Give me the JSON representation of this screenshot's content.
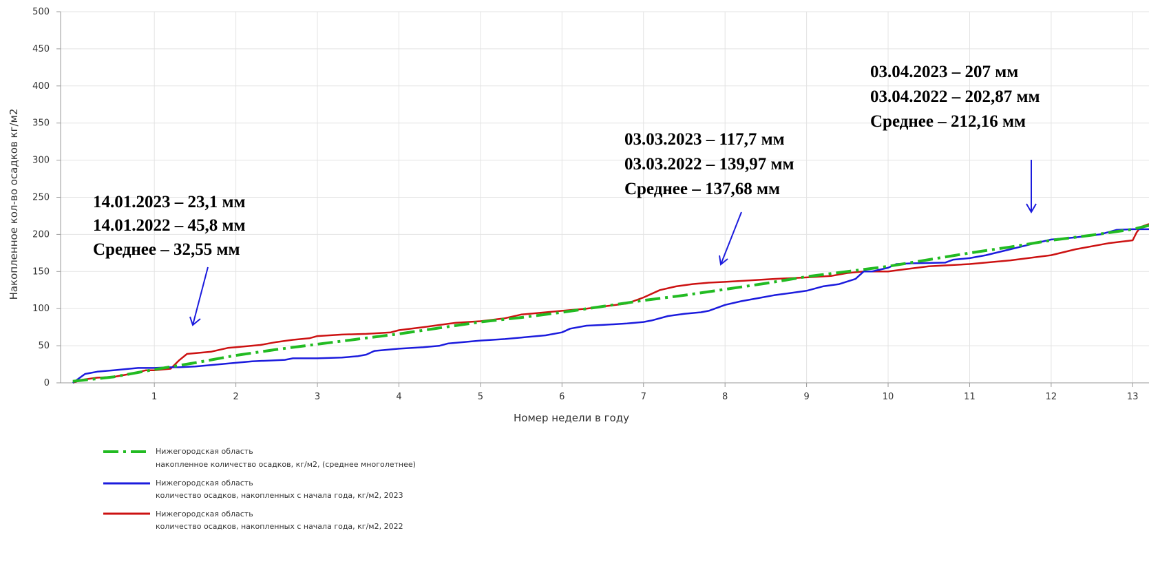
{
  "chart_data": {
    "type": "line",
    "xlabel": "Номер недели в году",
    "ylabel": "Накопленное кол-во осадков кг/м2",
    "xlim": [
      -0.15,
      13.2
    ],
    "ylim": [
      0,
      500
    ],
    "x_ticks": [
      1,
      2,
      3,
      4,
      5,
      6,
      7,
      8,
      9,
      10,
      11,
      12,
      13
    ],
    "y_ticks": [
      0,
      50,
      100,
      150,
      200,
      250,
      300,
      350,
      400,
      450,
      500
    ],
    "grid": true,
    "legend_position": "bottom-left",
    "series": [
      {
        "name": "Нижегородская область",
        "subtitle": "накопленное количество осадков, кг/м2, (среднее многолетнее)",
        "color": "#22bb22",
        "dash": "dash-dot",
        "x": [
          0,
          0.5,
          1,
          1.5,
          2,
          2.5,
          3,
          3.5,
          4,
          4.5,
          5,
          5.5,
          6,
          6.5,
          7,
          7.5,
          8,
          8.5,
          9,
          9.5,
          10,
          10.5,
          11,
          11.5,
          12,
          12.5,
          13,
          13.2
        ],
        "y": [
          2,
          8,
          18,
          27,
          37,
          45,
          52,
          59,
          66,
          74,
          82,
          88,
          95,
          103,
          111,
          118,
          126,
          134,
          143,
          150,
          157,
          166,
          175,
          183,
          192,
          199,
          207,
          212
        ]
      },
      {
        "name": "Нижегородская область",
        "subtitle": "количество осадков, накопленных с начала года, кг/м2, 2023",
        "color": "#1b1bdd",
        "dash": "solid",
        "x": [
          0,
          0.1,
          0.15,
          0.3,
          0.5,
          0.6,
          0.8,
          1,
          1.2,
          1.3,
          1.5,
          1.7,
          2,
          2.2,
          2.4,
          2.6,
          2.7,
          3,
          3.3,
          3.5,
          3.6,
          3.7,
          4,
          4.3,
          4.5,
          4.6,
          5,
          5.3,
          5.5,
          5.8,
          6,
          6.1,
          6.3,
          6.5,
          6.8,
          7,
          7.1,
          7.3,
          7.5,
          7.7,
          7.8,
          8,
          8.2,
          8.4,
          8.6,
          8.8,
          9,
          9.2,
          9.4,
          9.6,
          9.7,
          9.8,
          10,
          10.1,
          10.3,
          10.7,
          10.8,
          11,
          11.2,
          11.5,
          11.8,
          12,
          12.3,
          12.6,
          12.8,
          13,
          13.2
        ],
        "y": [
          0,
          8,
          12,
          15,
          17,
          18,
          20,
          20,
          21,
          21,
          22,
          24,
          27,
          29,
          30,
          31,
          33,
          33,
          34,
          36,
          38,
          43,
          46,
          48,
          50,
          53,
          57,
          59,
          61,
          64,
          68,
          73,
          77,
          78,
          80,
          82,
          84,
          90,
          93,
          95,
          97,
          105,
          110,
          114,
          118,
          121,
          124,
          130,
          133,
          140,
          150,
          150,
          155,
          160,
          161,
          162,
          166,
          168,
          172,
          180,
          188,
          193,
          196,
          200,
          206,
          207,
          207
        ]
      },
      {
        "name": "Нижегородская область",
        "subtitle": "количество осадков, накопленных с начала года, кг/м2, 2022",
        "color": "#cc1111",
        "dash": "solid",
        "x": [
          0,
          0.1,
          0.3,
          0.5,
          0.7,
          0.9,
          1,
          1.2,
          1.3,
          1.4,
          1.7,
          1.9,
          2,
          2.3,
          2.5,
          2.7,
          2.9,
          3,
          3.3,
          3.6,
          3.9,
          4,
          4.3,
          4.5,
          4.7,
          5,
          5.3,
          5.5,
          6,
          6.3,
          6.8,
          7,
          7.2,
          7.4,
          7.6,
          7.8,
          8,
          8.3,
          8.6,
          9,
          9.3,
          9.5,
          9.7,
          10,
          10.2,
          10.5,
          11,
          11.5,
          12,
          12.3,
          12.7,
          13,
          13.05,
          13.1,
          13.2
        ],
        "y": [
          0,
          4,
          7,
          8,
          12,
          17,
          17,
          19,
          30,
          39,
          42,
          47,
          48,
          51,
          55,
          58,
          60,
          63,
          65,
          66,
          68,
          71,
          75,
          78,
          81,
          83,
          87,
          92,
          97,
          100,
          107,
          115,
          125,
          130,
          133,
          135,
          136,
          138,
          140,
          142,
          144,
          148,
          150,
          150,
          153,
          157,
          160,
          165,
          172,
          180,
          188,
          192,
          203,
          210,
          214
        ]
      }
    ],
    "annotations": [
      {
        "lines": [
          "14.01.2023 – 23,1  мм",
          "14.01.2022 – 45,8 мм",
          "Среднее – 32,55 мм"
        ]
      },
      {
        "lines": [
          "03.03.2023 – 117,7  мм",
          "03.03.2022 – 139,97 мм",
          "Среднее – 137,68 мм"
        ]
      },
      {
        "lines": [
          "03.04.2023 – 207  мм",
          "03.04.2022 – 202,87 мм",
          "Среднее – 212,16 мм"
        ]
      }
    ],
    "annotation_color": "#1b1bdd"
  }
}
